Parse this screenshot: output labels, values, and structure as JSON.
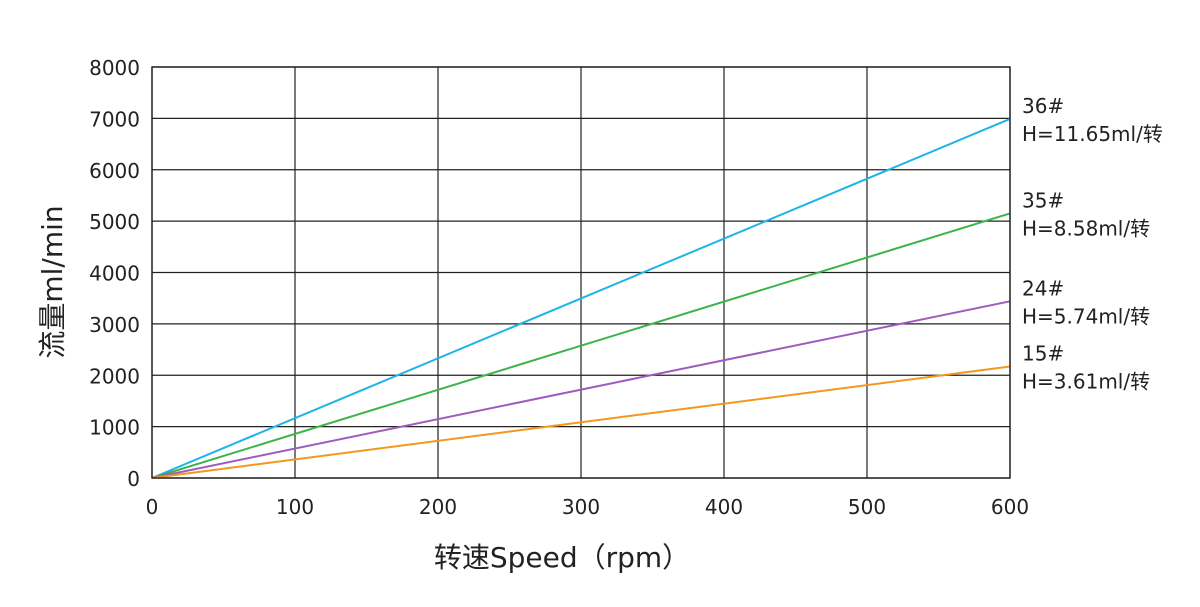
{
  "chart_data": {
    "type": "line",
    "title": "",
    "xlabel": "转速Speed（rpm）",
    "ylabel": "流量ml/min",
    "xlim": [
      0,
      600
    ],
    "ylim": [
      0,
      8000
    ],
    "x_ticks": [
      "0",
      "100",
      "200",
      "300",
      "400",
      "500",
      "600"
    ],
    "y_ticks": [
      "0",
      "1000",
      "2000",
      "3000",
      "4000",
      "5000",
      "6000",
      "7000",
      "8000"
    ],
    "grid": true,
    "legend": "right-end labels",
    "series": [
      {
        "name": "36#",
        "label_line2": "H=11.65ml/转",
        "color": "#1eb4e6",
        "x": [
          0,
          600
        ],
        "values": [
          0,
          6990
        ]
      },
      {
        "name": "35#",
        "label_line2": "H=8.58ml/转",
        "color": "#3cb44b",
        "x": [
          0,
          600
        ],
        "values": [
          0,
          5150
        ]
      },
      {
        "name": "24#",
        "label_line2": "H=5.74ml/转",
        "color": "#a05abe",
        "x": [
          0,
          600
        ],
        "values": [
          0,
          3440
        ]
      },
      {
        "name": "15#",
        "label_line2": "H=3.61ml/转",
        "color": "#f5961e",
        "x": [
          0,
          600
        ],
        "values": [
          0,
          2170
        ]
      }
    ]
  }
}
